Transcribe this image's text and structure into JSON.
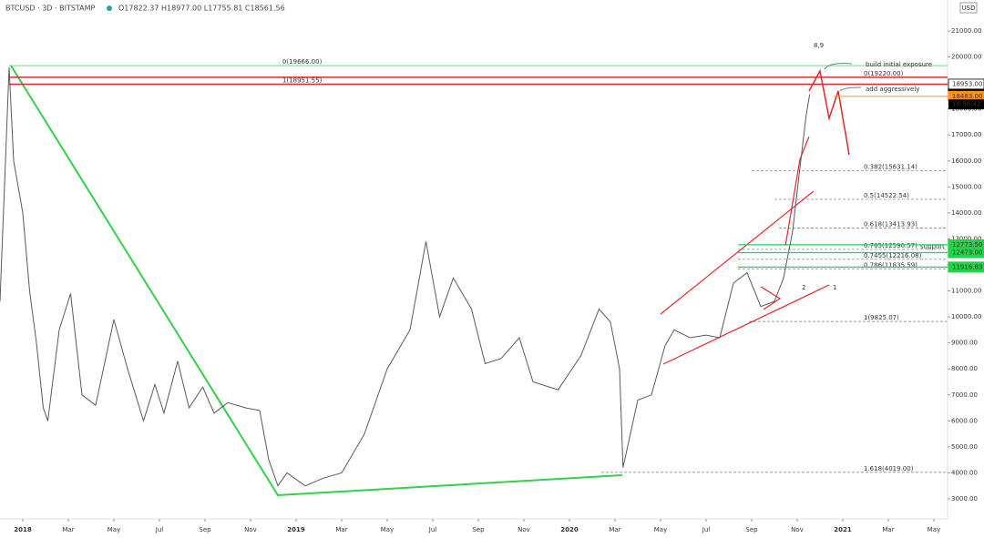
{
  "header": {
    "symbol": "BTCUSD · 3D · BITSTAMP",
    "ohlc": "O17822.37 H18977.00 L17755.81 C18561.56",
    "currency": "USD",
    "countdown": "18:56:42"
  },
  "chart_data": {
    "type": "line",
    "x": [
      -1,
      -0.6,
      -0.4,
      0,
      0.3,
      0.6,
      0.9,
      1.1,
      1.6,
      2.1,
      2.6,
      3.2,
      4.0,
      4.6,
      5.3,
      5.8,
      6.2,
      6.8,
      7.3,
      7.9,
      8.4,
      9.0,
      9.8,
      10.4,
      10.8,
      11.2,
      11.6,
      12.4,
      13.2,
      14.0,
      15.0,
      16.0,
      17.0,
      17.7,
      18.3,
      18.9,
      19.7,
      20.3,
      21.0,
      21.8,
      22.4,
      23.5,
      24.5,
      25.3,
      25.8,
      26.2,
      26.35,
      27.0,
      27.6,
      28.2,
      28.6,
      29.3,
      30.0,
      30.6,
      31.2,
      31.8,
      32.4,
      33.0,
      33.4,
      33.8,
      34.1,
      34.4,
      34.55
    ],
    "series": [
      {
        "name": "BTCUSD",
        "color": "#5a5a5a",
        "values": [
          10600,
          19600,
          16000,
          14000,
          11000,
          9000,
          6500,
          6000,
          9500,
          10900,
          7000,
          6600,
          9900,
          8000,
          6000,
          7400,
          6300,
          8300,
          6500,
          7300,
          6300,
          6700,
          6500,
          6400,
          4500,
          3500,
          4000,
          3500,
          3800,
          4000,
          5500,
          8000,
          9500,
          12900,
          10000,
          11500,
          10300,
          8200,
          8400,
          9200,
          7500,
          7200,
          8500,
          10300,
          9800,
          8000,
          4200,
          6800,
          7000,
          8900,
          9500,
          9200,
          9300,
          9200,
          11300,
          11700,
          10400,
          10600,
          11500,
          13300,
          15600,
          17800,
          18561.56
        ]
      }
    ],
    "xlim": [
      -1,
      40.6
    ],
    "ylim": [
      2230,
      22190
    ],
    "xticks": [
      {
        "value": 0,
        "label": "2018"
      },
      {
        "value": 2,
        "label": "Mar"
      },
      {
        "value": 4,
        "label": "May"
      },
      {
        "value": 6,
        "label": "Jul"
      },
      {
        "value": 8,
        "label": "Sep"
      },
      {
        "value": 10,
        "label": "Nov"
      },
      {
        "value": 12,
        "label": "2019"
      },
      {
        "value": 14,
        "label": "Mar"
      },
      {
        "value": 16,
        "label": "May"
      },
      {
        "value": 18,
        "label": "Jul"
      },
      {
        "value": 20,
        "label": "Sep"
      },
      {
        "value": 22,
        "label": "Nov"
      },
      {
        "value": 24,
        "label": "2020"
      },
      {
        "value": 26,
        "label": "Mar"
      },
      {
        "value": 28,
        "label": "May"
      },
      {
        "value": 30,
        "label": "Jul"
      },
      {
        "value": 32,
        "label": "Sep"
      },
      {
        "value": 34,
        "label": "Nov"
      },
      {
        "value": 36,
        "label": "2021"
      },
      {
        "value": 38,
        "label": "Mar"
      },
      {
        "value": 40,
        "label": "May"
      }
    ],
    "yticks": [
      {
        "value": 3000,
        "label": "3000.00"
      },
      {
        "value": 4000,
        "label": "4000.00"
      },
      {
        "value": 5000,
        "label": "5000.00"
      },
      {
        "value": 6000,
        "label": "6000.00"
      },
      {
        "value": 7000,
        "label": "7000.00"
      },
      {
        "value": 8000,
        "label": "8000.00"
      },
      {
        "value": 9000,
        "label": "9000.00"
      },
      {
        "value": 10000,
        "label": "10000.00"
      },
      {
        "value": 11000,
        "label": "11000.00"
      },
      {
        "value": 12000,
        "label": "12000.00"
      },
      {
        "value": 13000,
        "label": "13000.00"
      },
      {
        "value": 14000,
        "label": "14000.00"
      },
      {
        "value": 15000,
        "label": "15000.00"
      },
      {
        "value": 16000,
        "label": "16000.00"
      },
      {
        "value": 17000,
        "label": "17000.00"
      },
      {
        "value": 18000,
        "label": "18000.00"
      },
      {
        "value": 19000,
        "label": "19000.00"
      },
      {
        "value": 20000,
        "label": "20000.00"
      },
      {
        "value": 21000,
        "label": "21000.00"
      }
    ],
    "fib_levels": [
      {
        "label": "0(19666.00)",
        "value": 19666,
        "color": "#22c33a"
      },
      {
        "label": "1(18951.55)",
        "value": 18951.55,
        "color": "#22c33a"
      },
      {
        "label": "0(19220.00)",
        "value": 19220,
        "color": "#000000"
      },
      {
        "label": "0.382(15631.14)",
        "value": 15631.14,
        "color": "#000000"
      },
      {
        "label": "0.5(14522.54)",
        "value": 14522.54,
        "color": "#000000"
      },
      {
        "label": "0.618(13413.93)",
        "value": 13413.93,
        "color": "#000000"
      },
      {
        "label": "0.705(12596.57)",
        "value": 12596.57,
        "color": "#000000"
      },
      {
        "label": "0.7455(12216.08)",
        "value": 12216.08,
        "color": "#000000"
      },
      {
        "label": "0.786(11835.59)",
        "value": 11835.59,
        "color": "#000000"
      },
      {
        "label": "1(9825.07)",
        "value": 9825.07,
        "color": "#000000"
      },
      {
        "label": "1.618(4019.00)",
        "value": 4019,
        "color": "#000000"
      }
    ],
    "price_tags": [
      {
        "label": "18953.00",
        "value": 18953,
        "color": "#ffffff",
        "text_color": "#000000"
      },
      {
        "label": "18561.56",
        "value": 18561.56,
        "color": "#000000",
        "text_color": "#ffffff"
      },
      {
        "label": "18483.00",
        "value": 18483,
        "color": "#f7941d",
        "text_color": "#000000"
      },
      {
        "label": "12773.50",
        "value": 12773.5,
        "color": "#22d34a",
        "text_color": "#000000"
      },
      {
        "label": "12473.00",
        "value": 12473,
        "color": "#22d34a",
        "text_color": "#000000"
      },
      {
        "label": "11916.83",
        "value": 11916.83,
        "color": "#22d34a",
        "text_color": "#000000"
      }
    ],
    "annotations": [
      "build initial exposure",
      "add aggressively",
      "support",
      "8,9",
      "2",
      "1"
    ]
  }
}
